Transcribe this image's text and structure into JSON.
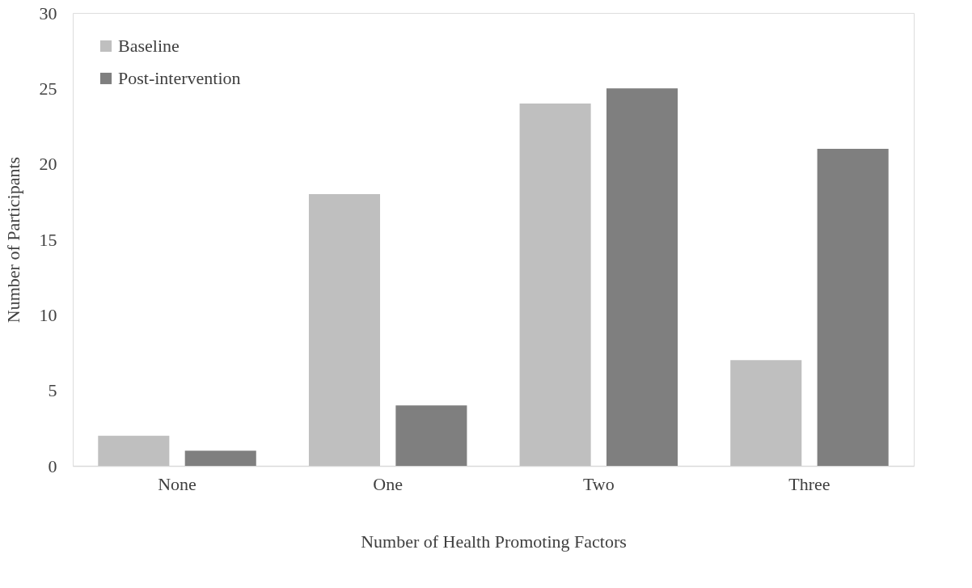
{
  "chart_data": {
    "type": "bar",
    "xlabel": "Number of Health Promoting Factors",
    "ylabel": "Number of Participants",
    "categories": [
      "None",
      "One",
      "Two",
      "Three"
    ],
    "series": [
      {
        "name": "Baseline",
        "color": "#bfbfbf",
        "values": [
          2,
          18,
          24,
          7
        ]
      },
      {
        "name": "Post-intervention",
        "color": "#7f7f7f",
        "values": [
          1,
          4,
          25,
          21
        ]
      }
    ],
    "ylim": [
      0,
      30
    ],
    "yticks": [
      0,
      5,
      10,
      15,
      20,
      25,
      30
    ],
    "grid": false,
    "legend": "top left"
  }
}
